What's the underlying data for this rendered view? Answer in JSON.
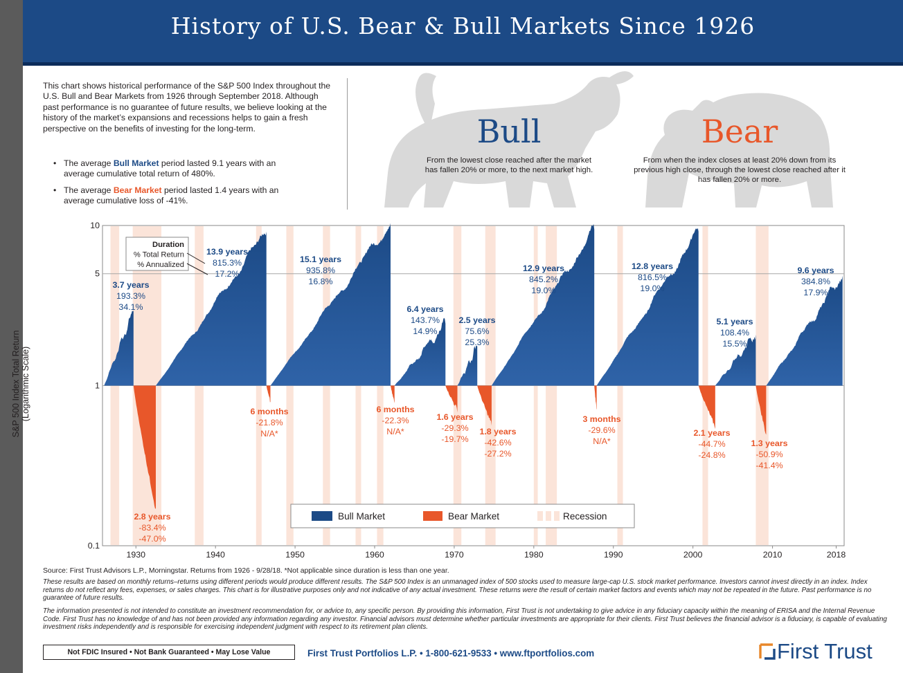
{
  "page": {
    "title": "History of U.S. Bear & Bull Markets Since 1926",
    "intro": "This chart shows historical performance of the S&P 500 Index throughout the U.S. Bull and Bear Markets from 1926 through September 2018. Although past performance is no guarantee of future results, we believe looking at the history of the market’s expansions and recessions helps to gain a fresh perspective on the benefits of investing for the long-term.",
    "bullets": [
      {
        "pre": "The average ",
        "em": "Bull Market",
        "post": " period lasted 9.1 years with an average cumulative total return of 480%."
      },
      {
        "pre": "The average ",
        "em": "Bear Market",
        "post": " period lasted 1.4 years with an average cumulative loss of -41%."
      }
    ],
    "bull_word": "Bull",
    "bull_definition": "From the lowest close reached after the market has fallen 20% or more, to the next market high.",
    "bear_word": "Bear",
    "bear_definition": "From when the index closes at least 20% down from its previous high close, through the lowest close reached after it has fallen 20% or more.",
    "source": "Source: First Trust Advisors L.P., Morningstar. Returns from 1926 - 9/28/18. *Not applicable since duration is less than one year.",
    "disclaimer_1": "These results are based on monthly returns–returns using different periods would produce different results. The S&P 500 Index is an unmanaged index of 500 stocks used to measure large-cap U.S. stock market performance. Investors cannot invest directly in an index. Index returns do not reflect any fees, expenses, or sales charges. This chart is for illustrative purposes only and not indicative of any actual investment. These returns were the result of certain market factors and events which may not be repeated in the future. Past performance is no guarantee of future results.",
    "disclaimer_2": "The information presented is not intended to constitute an investment recommendation for, or advice to, any specific person. By providing this information, First Trust is not undertaking to give advice in any fiduciary capacity within the meaning of ERISA and the Internal Revenue Code. First Trust has no knowledge of and has not been provided any information regarding any investor. Financial advisors must determine whether particular investments are appropriate for their clients. First Trust believes the financial advisor is a fiduciary, is capable of evaluating investment risks independently and is responsible for exercising independent judgment with respect to its retirement plan clients.",
    "fdic": "Not FDIC Insured • Not Bank Guaranteed • May Lose Value",
    "contact": "First Trust Portfolios L.P. • 1-800-621-9533 • www.ftportfolios.com",
    "brand": "First Trust",
    "colors": {
      "bull": "#1c4a86",
      "bear": "#e8572a",
      "recession": "#fbe4d9",
      "header": "#1c4a86",
      "text": "#231f20"
    }
  },
  "chart_data": {
    "type": "area",
    "ylabel": "S&P 500 Index Total Return (Logarithmic Scale)",
    "y_scale": "log",
    "ylim": [
      0.1,
      10
    ],
    "y_ticks": [
      "10",
      "5",
      "1",
      "0.1"
    ],
    "y_tick_values": [
      10,
      5,
      1,
      0.1
    ],
    "xlim": [
      1925.8,
      2019
    ],
    "x_ticks": [
      "1930",
      "1940",
      "1950",
      "1960",
      "1970",
      "1980",
      "1990",
      "2000",
      "2010",
      "2018"
    ],
    "x_tick_values": [
      1930,
      1940,
      1950,
      1960,
      1970,
      1980,
      1990,
      2000,
      2010,
      2018
    ],
    "recessions": [
      [
        1926.8,
        1927.9
      ],
      [
        1929.6,
        1933.2
      ],
      [
        1937.4,
        1938.5
      ],
      [
        1945.1,
        1945.8
      ],
      [
        1948.9,
        1949.8
      ],
      [
        1953.5,
        1954.4
      ],
      [
        1957.6,
        1958.3
      ],
      [
        1960.3,
        1961.1
      ],
      [
        1969.9,
        1970.9
      ],
      [
        1973.9,
        1975.2
      ],
      [
        1980.0,
        1980.5
      ],
      [
        1981.5,
        1982.9
      ],
      [
        1990.5,
        1991.2
      ],
      [
        2001.2,
        2001.9
      ],
      [
        2007.9,
        2009.5
      ]
    ],
    "legend_header": [
      "Duration",
      "% Total Return",
      "% Annualized"
    ],
    "legend": [
      "Bull Market",
      "Bear Market",
      "Recession"
    ],
    "bull_markets": [
      {
        "duration": "3.7 years",
        "total_return": "193.3%",
        "annualized": "34.1%",
        "start": 1926.0,
        "end": 1929.7,
        "peak": 2.933
      },
      {
        "duration": "13.9 years",
        "total_return": "815.3%",
        "annualized": "17.2%",
        "start": 1932.5,
        "end": 1946.4,
        "peak": 9.153
      },
      {
        "duration": "15.1 years",
        "total_return": "935.8%",
        "annualized": "16.8%",
        "start": 1946.9,
        "end": 1962.0,
        "peak": 10.358
      },
      {
        "duration": "6.4 years",
        "total_return": "143.7%",
        "annualized": "14.9%",
        "start": 1962.5,
        "end": 1968.9,
        "peak": 2.437
      },
      {
        "duration": "2.5 years",
        "total_return": "75.6%",
        "annualized": "25.3%",
        "start": 1970.4,
        "end": 1972.9,
        "peak": 1.756
      },
      {
        "duration": "12.9 years",
        "total_return": "845.2%",
        "annualized": "19.0%",
        "start": 1974.7,
        "end": 1987.6,
        "peak": 9.452
      },
      {
        "duration": "12.8 years",
        "total_return": "816.5%",
        "annualized": "19.0%",
        "start": 1987.9,
        "end": 2000.7,
        "peak": 9.165
      },
      {
        "duration": "5.1 years",
        "total_return": "108.4%",
        "annualized": "15.5%",
        "start": 2002.8,
        "end": 2007.9,
        "peak": 2.084
      },
      {
        "duration": "9.6 years",
        "total_return": "384.8%",
        "annualized": "17.9%",
        "start": 2009.2,
        "end": 2018.8,
        "peak": 4.848
      }
    ],
    "bear_markets": [
      {
        "duration": "2.8 years",
        "total_return": "-83.4%",
        "annualized": "-47.0%",
        "start": 1929.7,
        "end": 1932.5,
        "trough": 0.166
      },
      {
        "duration": "6 months",
        "total_return": "-21.8%",
        "annualized": "N/A*",
        "start": 1946.4,
        "end": 1946.9,
        "trough": 0.782
      },
      {
        "duration": "6 months",
        "total_return": "-22.3%",
        "annualized": "N/A*",
        "start": 1962.0,
        "end": 1962.5,
        "trough": 0.777
      },
      {
        "duration": "1.6 years",
        "total_return": "-29.3%",
        "annualized": "-19.7%",
        "start": 1968.9,
        "end": 1970.4,
        "trough": 0.707
      },
      {
        "duration": "1.8 years",
        "total_return": "-42.6%",
        "annualized": "-27.2%",
        "start": 1972.9,
        "end": 1974.7,
        "trough": 0.574
      },
      {
        "duration": "3 months",
        "total_return": "-29.6%",
        "annualized": "N/A*",
        "start": 1987.6,
        "end": 1987.9,
        "trough": 0.704
      },
      {
        "duration": "2.1 years",
        "total_return": "-44.7%",
        "annualized": "-24.8%",
        "start": 2000.7,
        "end": 2002.8,
        "trough": 0.553
      },
      {
        "duration": "1.3 years",
        "total_return": "-50.9%",
        "annualized": "-41.4%",
        "start": 2007.9,
        "end": 2009.2,
        "trough": 0.491
      }
    ]
  }
}
